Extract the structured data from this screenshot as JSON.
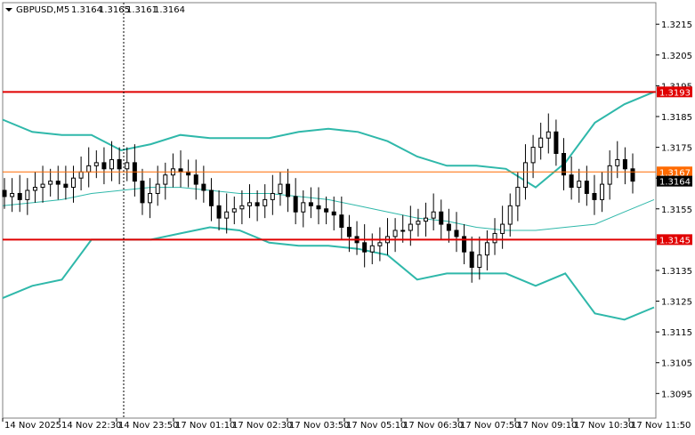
{
  "chart_data": {
    "type": "candlestick",
    "symbol": "GBPUSD",
    "timeframe": "M5",
    "header": {
      "label": "GBPUSD,M5",
      "open": "1.3164",
      "high": "1.3165",
      "low": "1.3161",
      "close": "1.3164"
    },
    "ylim": [
      1.3087,
      1.3222
    ],
    "y_ticks": [
      "1.3215",
      "1.3205",
      "1.3195",
      "1.3185",
      "1.3175",
      "1.3165",
      "1.3155",
      "1.3145",
      "1.3135",
      "1.3125",
      "1.3115",
      "1.3105",
      "1.3095"
    ],
    "x_ticks": [
      "14 Nov 2025",
      "14 Nov 22:30",
      "14 Nov 23:50",
      "17 Nov 01:10",
      "17 Nov 02:30",
      "17 Nov 03:50",
      "17 Nov 05:10",
      "17 Nov 06:30",
      "17 Nov 07:50",
      "17 Nov 09:10",
      "17 Nov 10:30",
      "17 Nov 11:50"
    ],
    "levels": [
      {
        "value": 1.3193,
        "label": "1.3193",
        "color": "#e00000"
      },
      {
        "value": 1.3145,
        "label": "1.3145",
        "color": "#e00000"
      },
      {
        "value": 1.3167,
        "label": "1.3167",
        "color": "#ff6a00"
      },
      {
        "value": 1.3164,
        "label": "1.3164",
        "color": "#000000"
      }
    ],
    "close_series": [
      1.3159,
      1.316,
      1.3158,
      1.3161,
      1.3162,
      1.3163,
      1.3164,
      1.3163,
      1.3162,
      1.3165,
      1.3167,
      1.3169,
      1.317,
      1.3168,
      1.3171,
      1.3168,
      1.317,
      1.3164,
      1.3157,
      1.316,
      1.3163,
      1.3166,
      1.3168,
      1.3167,
      1.3166,
      1.3163,
      1.3161,
      1.3156,
      1.3152,
      1.3154,
      1.3155,
      1.3156,
      1.3157,
      1.3156,
      1.3158,
      1.316,
      1.3163,
      1.3159,
      1.3154,
      1.3157,
      1.3156,
      1.3155,
      1.3154,
      1.3153,
      1.3149,
      1.3146,
      1.3144,
      1.3141,
      1.3143,
      1.3144,
      1.3146,
      1.3148,
      1.3148,
      1.315,
      1.3151,
      1.3152,
      1.3154,
      1.315,
      1.3148,
      1.3146,
      1.3141,
      1.3136,
      1.314,
      1.3144,
      1.3147,
      1.315,
      1.3156,
      1.3162,
      1.317,
      1.3175,
      1.3178,
      1.318,
      1.3173,
      1.3166,
      1.3162,
      1.3164,
      1.316,
      1.3158,
      1.3163,
      1.3169,
      1.3171,
      1.3168,
      1.3164
    ],
    "middle_band": [
      1.3156,
      1.3157,
      1.3158,
      1.316,
      1.3161,
      1.3162,
      1.3162,
      1.3161,
      1.316,
      1.316,
      1.3159,
      1.3158,
      1.3156,
      1.3154,
      1.3152,
      1.3151,
      1.3149,
      1.3148,
      1.3148,
      1.3149,
      1.315,
      1.3154,
      1.3158
    ],
    "upper_band": [
      1.3184,
      1.318,
      1.3179,
      1.3179,
      1.3174,
      1.3176,
      1.3179,
      1.3178,
      1.3178,
      1.3178,
      1.318,
      1.3181,
      1.318,
      1.3177,
      1.3172,
      1.3169,
      1.3169,
      1.3168,
      1.3162,
      1.317,
      1.3183,
      1.3189,
      1.3193
    ],
    "lower_band": [
      1.3126,
      1.313,
      1.3132,
      1.3145,
      1.3145,
      1.3145,
      1.3147,
      1.3149,
      1.3148,
      1.3144,
      1.3143,
      1.3143,
      1.3142,
      1.314,
      1.3132,
      1.3134,
      1.3134,
      1.3134,
      1.313,
      1.3134,
      1.3121,
      1.3119,
      1.3123
    ],
    "grid": false
  }
}
